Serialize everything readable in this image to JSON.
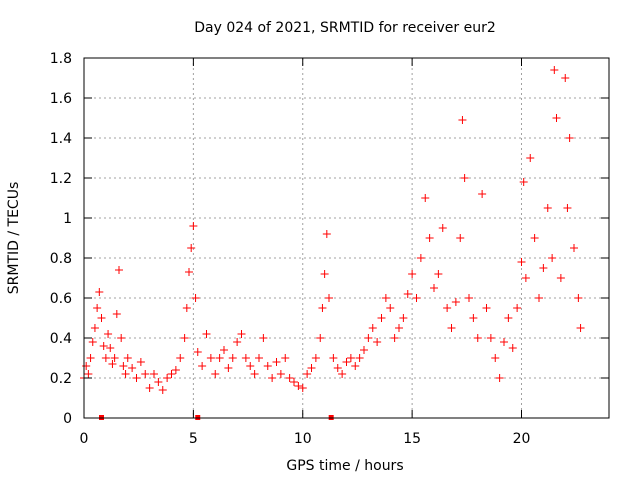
{
  "chart_data": {
    "type": "scatter",
    "title": "Day 024 of 2021, SRMTID for receiver eur2",
    "xlabel": "GPS time / hours",
    "ylabel": "SRMTID / TECUs",
    "xlim": [
      0,
      24
    ],
    "ylim": [
      0,
      1.8
    ],
    "xticks": [
      0,
      5,
      10,
      15,
      20
    ],
    "xtick_labels": [
      "0",
      "5",
      "10",
      "15",
      "20"
    ],
    "yticks": [
      0,
      0.2,
      0.4,
      0.6,
      0.8,
      1,
      1.2,
      1.4,
      1.6,
      1.8
    ],
    "ytick_labels": [
      "0",
      "0.2",
      "0.4",
      "0.6",
      "0.8",
      "1",
      "1.2",
      "1.4",
      "1.6",
      "1.8"
    ],
    "grid": true,
    "marker": "+",
    "color": "#ff0000",
    "series": [
      {
        "name": "SRMTID",
        "x": [
          0.0,
          0.1,
          0.2,
          0.3,
          0.4,
          0.5,
          0.6,
          0.7,
          0.8,
          0.9,
          1.0,
          1.1,
          1.2,
          1.3,
          1.4,
          1.5,
          1.6,
          1.7,
          1.8,
          1.9,
          2.0,
          2.2,
          2.4,
          2.6,
          2.8,
          3.0,
          3.2,
          3.4,
          3.6,
          3.8,
          4.0,
          4.2,
          4.4,
          4.6,
          4.7,
          4.8,
          4.9,
          5.0,
          5.1,
          5.2,
          5.4,
          5.6,
          5.8,
          6.0,
          6.2,
          6.4,
          6.6,
          6.8,
          7.0,
          7.2,
          7.4,
          7.6,
          7.8,
          8.0,
          8.2,
          8.4,
          8.6,
          8.8,
          9.0,
          9.2,
          9.4,
          9.6,
          9.8,
          10.0,
          10.2,
          10.4,
          10.6,
          10.8,
          10.9,
          11.0,
          11.1,
          11.2,
          11.4,
          11.6,
          11.8,
          12.0,
          12.2,
          12.4,
          12.6,
          12.8,
          13.0,
          13.2,
          13.4,
          13.6,
          13.8,
          14.0,
          14.2,
          14.4,
          14.6,
          14.8,
          15.0,
          15.2,
          15.4,
          15.6,
          15.8,
          16.0,
          16.2,
          16.4,
          16.6,
          16.8,
          17.0,
          17.2,
          17.3,
          17.4,
          17.6,
          17.8,
          18.0,
          18.2,
          18.4,
          18.6,
          18.8,
          19.0,
          19.2,
          19.4,
          19.6,
          19.8,
          20.0,
          20.1,
          20.2,
          20.4,
          20.6,
          20.8,
          21.0,
          21.2,
          21.4,
          21.5,
          21.6,
          21.8,
          22.0,
          22.1,
          22.2,
          22.4,
          22.6,
          22.7
        ],
        "y": [
          0.2,
          0.26,
          0.22,
          0.3,
          0.38,
          0.45,
          0.55,
          0.63,
          0.5,
          0.36,
          0.3,
          0.42,
          0.35,
          0.27,
          0.3,
          0.52,
          0.74,
          0.4,
          0.26,
          0.22,
          0.3,
          0.25,
          0.2,
          0.28,
          0.22,
          0.15,
          0.22,
          0.18,
          0.14,
          0.2,
          0.22,
          0.24,
          0.3,
          0.4,
          0.55,
          0.73,
          0.85,
          0.96,
          0.6,
          0.33,
          0.26,
          0.42,
          0.3,
          0.22,
          0.3,
          0.34,
          0.25,
          0.3,
          0.38,
          0.42,
          0.3,
          0.26,
          0.22,
          0.3,
          0.4,
          0.26,
          0.2,
          0.28,
          0.22,
          0.3,
          0.2,
          0.18,
          0.16,
          0.15,
          0.22,
          0.25,
          0.3,
          0.4,
          0.55,
          0.72,
          0.92,
          0.6,
          0.3,
          0.25,
          0.22,
          0.28,
          0.3,
          0.26,
          0.3,
          0.34,
          0.4,
          0.45,
          0.38,
          0.5,
          0.6,
          0.55,
          0.4,
          0.45,
          0.5,
          0.62,
          0.72,
          0.6,
          0.8,
          1.1,
          0.9,
          0.65,
          0.72,
          0.95,
          0.55,
          0.45,
          0.58,
          0.9,
          1.49,
          1.2,
          0.6,
          0.5,
          0.4,
          1.12,
          0.55,
          0.4,
          0.3,
          0.2,
          0.38,
          0.5,
          0.35,
          0.55,
          0.78,
          1.18,
          0.7,
          1.3,
          0.9,
          0.6,
          0.75,
          1.05,
          0.8,
          1.74,
          1.5,
          0.7,
          1.7,
          1.05,
          1.4,
          0.85,
          0.6,
          0.45
        ]
      }
    ],
    "gap_markers_x": [
      0.8,
      5.2,
      11.3
    ]
  }
}
